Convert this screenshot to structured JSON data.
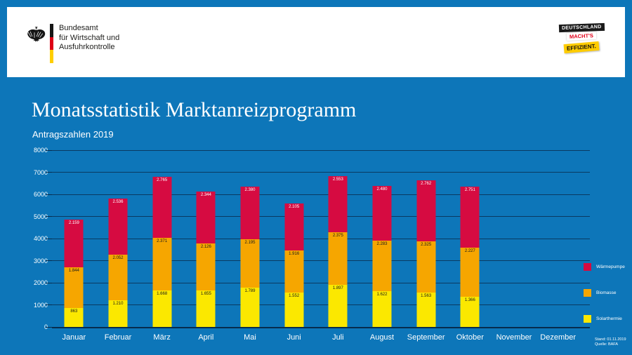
{
  "header": {
    "agency_name_lines": [
      "Bundesamt",
      "für Wirtschaft und",
      "Ausfuhrkontrolle"
    ],
    "badge": {
      "line1": "DEUTSCHLAND",
      "line2": "MACHT'S",
      "line3": "EFFIZIENT."
    }
  },
  "title": "Monatsstatistik Marktanreizprogramm",
  "subtitle": "Antragszahlen 2019",
  "footnote": {
    "stand": "Stand: 01.11.2019",
    "quelle": "Quelle: BAFA"
  },
  "colors": {
    "background": "#0D76B9",
    "panel": "#FFFFFF",
    "grid": "#0A3A61",
    "axis_text": "#FFFFFF",
    "waermepumpe": "#D60B41",
    "biomasse": "#F6A600",
    "solarthermie": "#FBE800"
  },
  "chart_data": {
    "type": "bar",
    "stacked": true,
    "title": "Monatsstatistik Marktanreizprogramm",
    "subtitle": "Antragszahlen 2019",
    "categories": [
      "Januar",
      "Februar",
      "März",
      "April",
      "Mai",
      "Juni",
      "Juli",
      "August",
      "September",
      "Oktober",
      "November",
      "Dezember"
    ],
    "series": [
      {
        "name": "Wärmepumpe",
        "color": "#D60B41",
        "label_color": "#FFFFFF",
        "values": [
          2159,
          2536,
          2765,
          2344,
          2380,
          2105,
          2553,
          2480,
          2762,
          2751,
          null,
          null
        ]
      },
      {
        "name": "Biomasse",
        "color": "#F6A600",
        "label_color": "#1A1A1A",
        "values": [
          1844,
          2052,
          2371,
          2126,
          2195,
          1916,
          2375,
          2283,
          2325,
          2227,
          null,
          null
        ]
      },
      {
        "name": "Solarthermie",
        "color": "#FBE800",
        "label_color": "#1A1A1A",
        "values": [
          863,
          1210,
          1668,
          1655,
          1789,
          1552,
          1897,
          1622,
          1563,
          1366,
          null,
          null
        ]
      }
    ],
    "ylim": [
      0,
      8000
    ],
    "ytick_step": 1000,
    "grid": true,
    "legend_position": "right",
    "value_label_format": "thousands-dot"
  }
}
